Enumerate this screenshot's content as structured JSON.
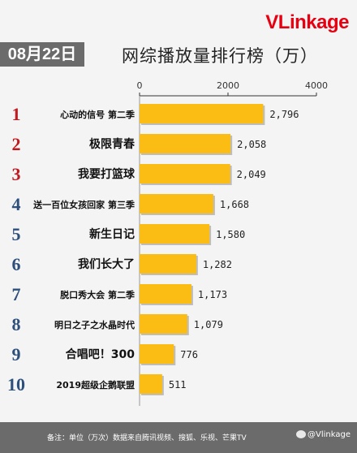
{
  "header": {
    "brand_v": "V",
    "brand_link": "Link",
    "brand_age": "age",
    "date": "08月22日",
    "title": "网综播放量排行榜（万）"
  },
  "footer": {
    "note": "备注：单位（万次）数据来自腾讯视频、搜狐、乐视、芒果TV",
    "watermark": "@Vlinkage"
  },
  "colors": {
    "bar": "#fbbd14",
    "rank": "#c0191f",
    "rank_alt": "#2d4f7c",
    "brand": "#e60012"
  },
  "chart_data": {
    "type": "bar",
    "orientation": "horizontal",
    "title": "网综播放量排行榜（万）",
    "xlim": [
      0,
      4000
    ],
    "xticks": [
      "0",
      "2000",
      "4000"
    ],
    "grid": false,
    "categories": [
      "心动的信号 第二季",
      "极限青春",
      "我要打篮球",
      "送一百位女孩回家 第三季",
      "新生日记",
      "我们长大了",
      "脱口秀大会 第二季",
      "明日之子之水晶时代",
      "合唱吧！300",
      "2019超级企鹅联盟"
    ],
    "ranks": [
      "1",
      "2",
      "3",
      "4",
      "5",
      "6",
      "7",
      "8",
      "9",
      "10"
    ],
    "values": [
      2796,
      2058,
      2049,
      1668,
      1580,
      1282,
      1173,
      1079,
      776,
      511
    ],
    "value_labels": [
      "2,796",
      "2,058",
      "2,049",
      "1,668",
      "1,580",
      "1,282",
      "1,173",
      "1,079",
      "776",
      "511"
    ]
  }
}
